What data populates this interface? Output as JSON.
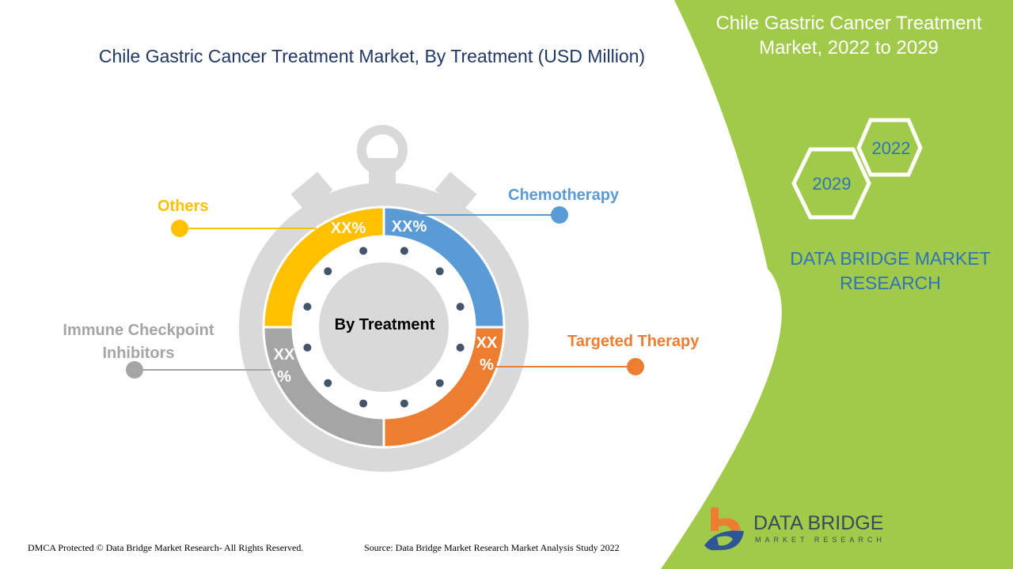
{
  "title": "Chile Gastric Cancer Treatment Market, By Treatment (USD Million)",
  "side_panel": {
    "title": "Chile Gastric Cancer Treatment Market, 2022 to 2029",
    "year_start": "2022",
    "year_end": "2029",
    "brand": "DATA BRIDGE MARKET RESEARCH",
    "logo_text": "DATA BRIDGE",
    "logo_subtext": "MARKET RESEARCH",
    "color": "#a1c94a"
  },
  "chart_data": {
    "type": "pie",
    "title": "Chile Gastric Cancer Treatment Market, By Treatment (USD Million)",
    "center_label": "By Treatment",
    "categories": [
      "Chemotherapy",
      "Targeted Therapy",
      "Immune Checkpoint Inhibitors",
      "Others"
    ],
    "value_labels": [
      "XX%",
      "XX%",
      "XX%",
      "XX%"
    ],
    "colors": [
      "#5b9bd5",
      "#ed7d31",
      "#a5a5a5",
      "#ffc000"
    ]
  },
  "footer": {
    "copyright": "DMCA Protected © Data Bridge Market Research- All Rights Reserved.",
    "source": "Source: Data Bridge Market Research Market Analysis Study 2022"
  }
}
